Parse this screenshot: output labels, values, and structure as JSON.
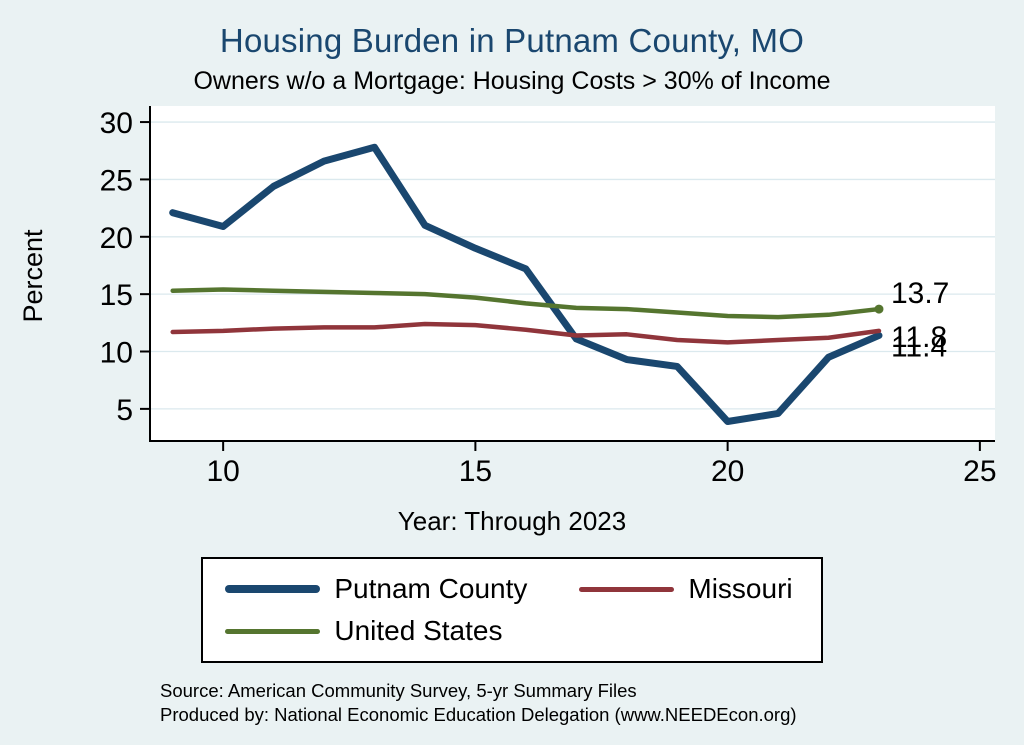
{
  "title": "Housing Burden in Putnam County, MO",
  "subtitle": "Owners w/o a Mortgage: Housing Costs > 30% of Income",
  "xlabel": "Year: Through 2023",
  "ylabel": "Percent",
  "source_line1": "Source: American Community Survey, 5-yr Summary Files",
  "source_line2": "Produced by: National Economic Education Delegation (www.NEEDEcon.org)",
  "colors": {
    "background": "#eaf2f3",
    "plot_background": "#ffffff",
    "title_text": "#1a476f",
    "grid": "#dbe9ee",
    "axis": "#000000",
    "putnam_county": "#1a476f",
    "missouri": "#90353b",
    "united_states": "#55752f"
  },
  "legend": {
    "items": [
      {
        "label": "Putnam County",
        "color": "#1a476f",
        "thickness": 8
      },
      {
        "label": "Missouri",
        "color": "#90353b",
        "thickness": 5
      },
      {
        "label": "United States",
        "color": "#55752f",
        "thickness": 5
      }
    ]
  },
  "chart_data": {
    "type": "line",
    "title": "Housing Burden in Putnam County, MO",
    "subtitle": "Owners w/o a Mortgage: Housing Costs > 30% of Income",
    "xlabel": "Year: Through 2023",
    "ylabel": "Percent",
    "x": [
      9,
      10,
      11,
      12,
      13,
      14,
      15,
      16,
      17,
      18,
      19,
      20,
      21,
      22,
      23
    ],
    "series": [
      {
        "name": "Putnam County",
        "color": "#1a476f",
        "width": 7,
        "values": [
          22.1,
          20.9,
          24.4,
          26.6,
          27.8,
          21.0,
          19.0,
          17.2,
          11.1,
          9.3,
          8.7,
          3.9,
          4.6,
          9.5,
          11.4
        ]
      },
      {
        "name": "Missouri",
        "color": "#90353b",
        "width": 4.5,
        "values": [
          11.7,
          11.8,
          12.0,
          12.1,
          12.1,
          12.4,
          12.3,
          11.9,
          11.4,
          11.5,
          11.0,
          10.8,
          11.0,
          11.2,
          11.8
        ]
      },
      {
        "name": "United States",
        "color": "#55752f",
        "width": 4.5,
        "end_dot": true,
        "values": [
          15.3,
          15.4,
          15.3,
          15.2,
          15.1,
          15.0,
          14.7,
          14.2,
          13.8,
          13.7,
          13.4,
          13.1,
          13.0,
          13.2,
          13.7
        ]
      }
    ],
    "xticks": [
      10,
      15,
      20,
      25
    ],
    "yticks": [
      5,
      10,
      15,
      20,
      25,
      30
    ],
    "xlim": [
      8.55,
      25.3
    ],
    "ylim": [
      2.2,
      31.4
    ],
    "grid": true,
    "legend_position": "bottom",
    "end_labels": [
      {
        "text": "13.7",
        "value": 13.7
      },
      {
        "text": "11.8",
        "value": 11.8
      },
      {
        "text": "11.4",
        "value": 11.4
      }
    ]
  }
}
